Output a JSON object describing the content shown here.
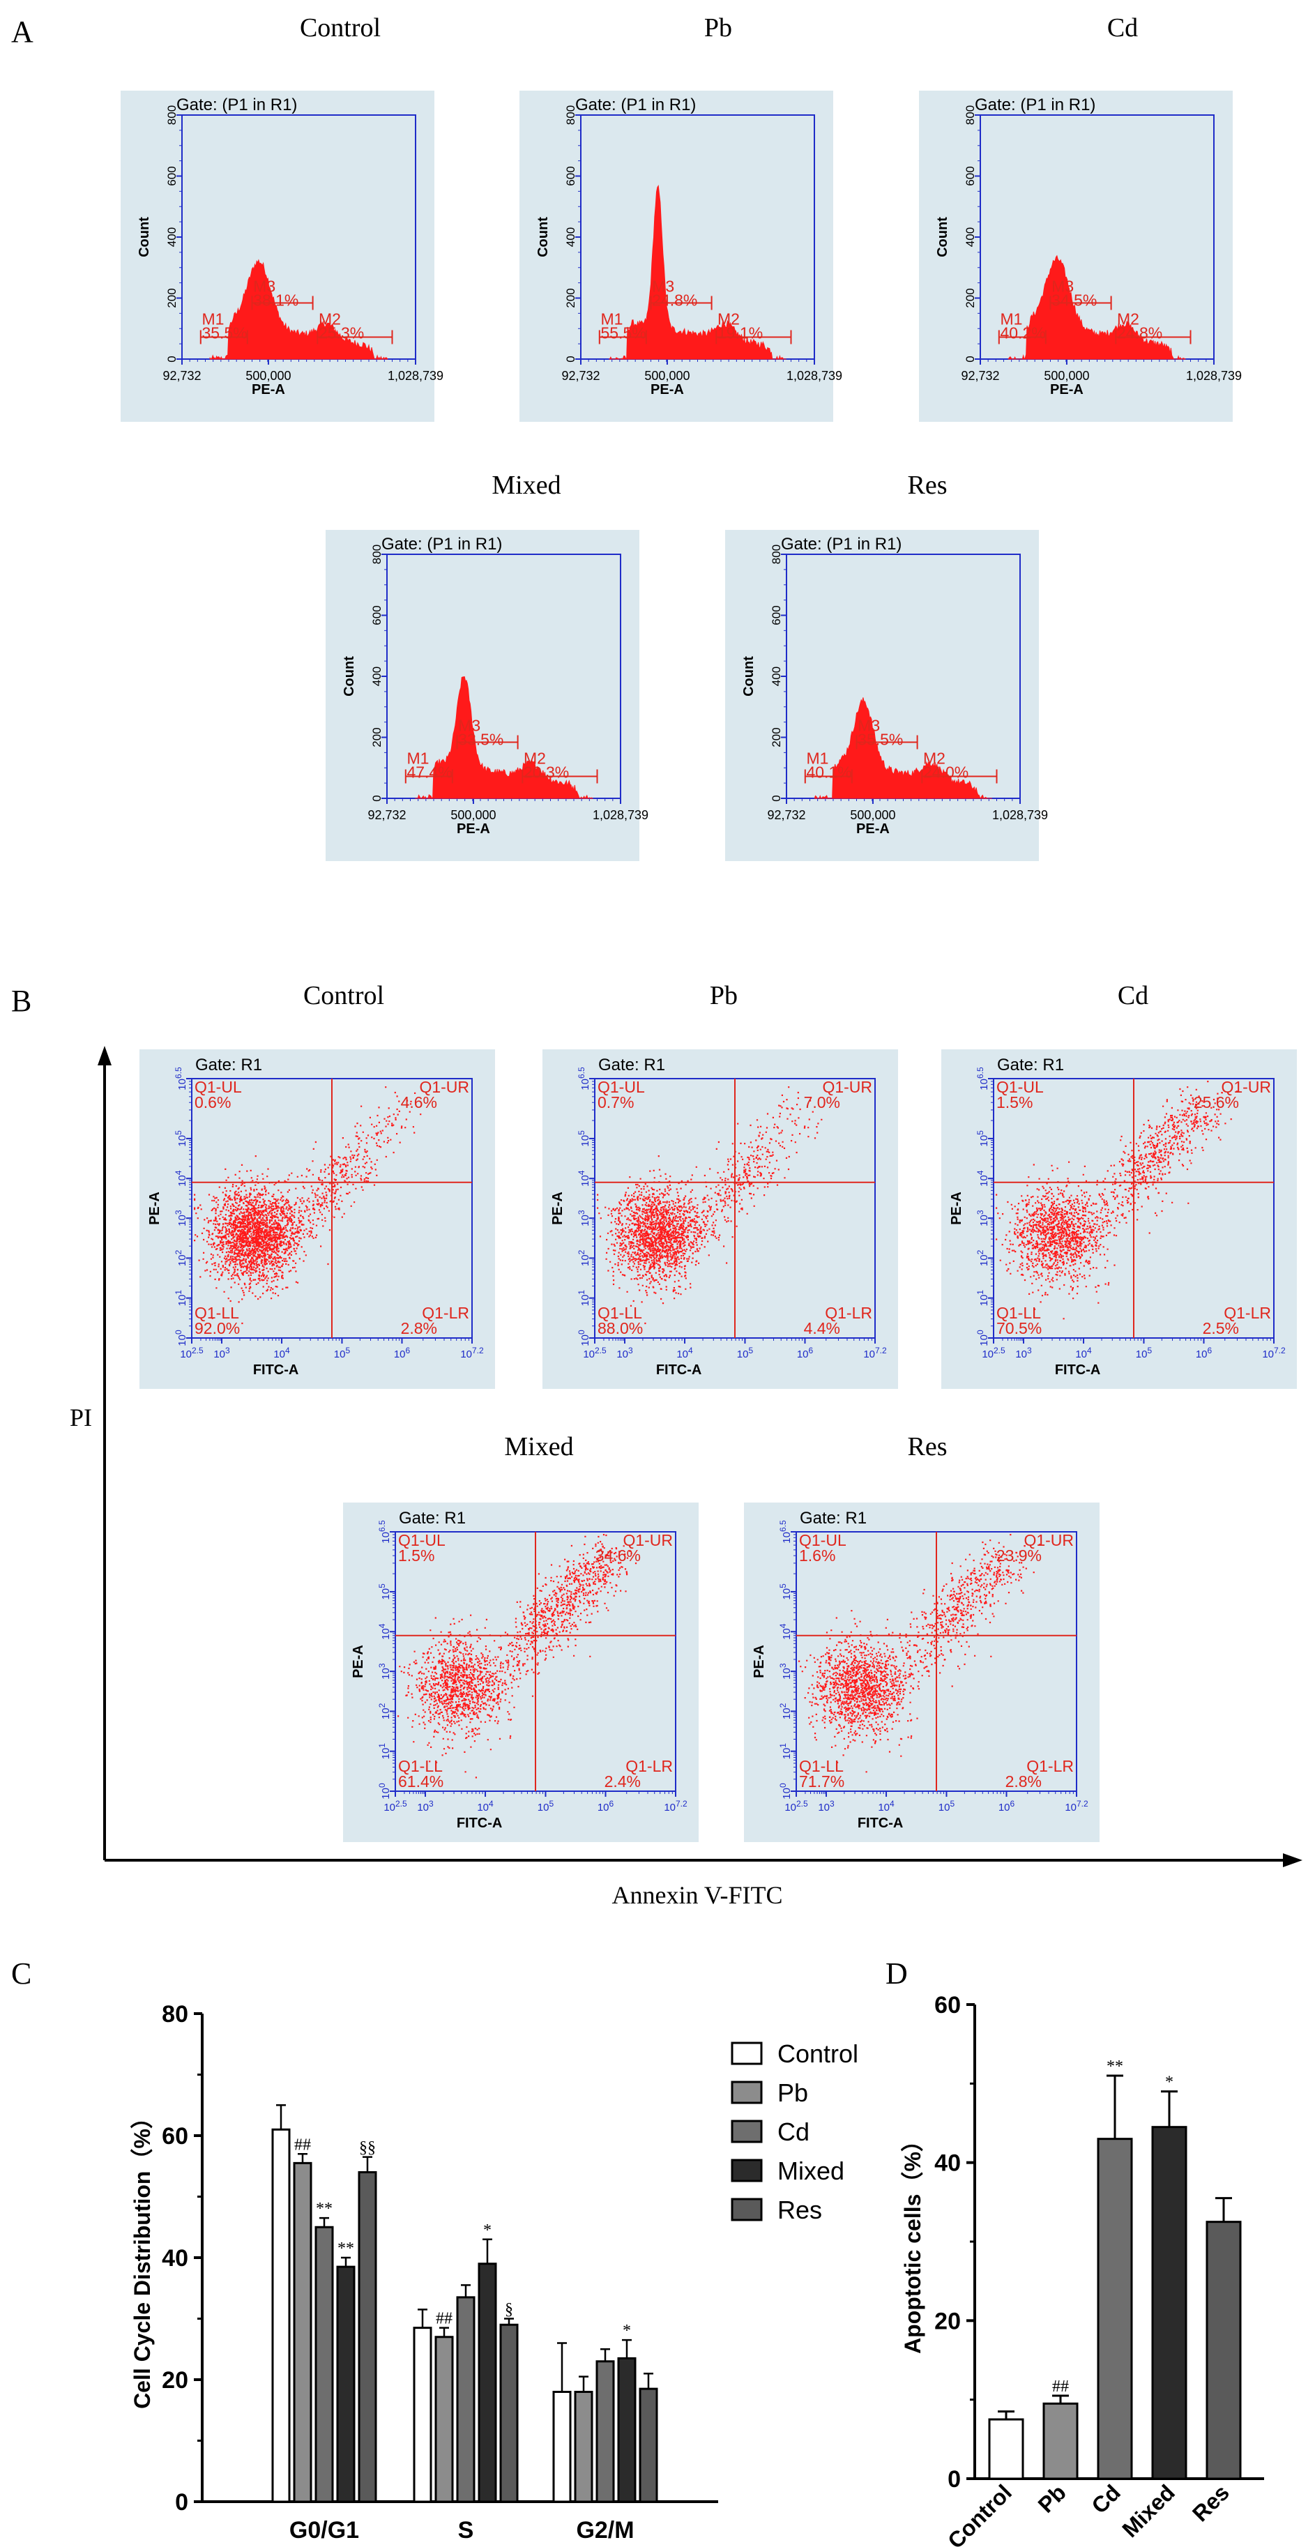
{
  "colors": {
    "panel_bg": "#dbe8ee",
    "axis_blue": "#1f2cc8",
    "data_red": "#ff1a1a",
    "label_red": "#e0261d",
    "bar_control": "#ffffff",
    "bar_pb": "#8c8c8c",
    "bar_cd": "#6e6e6e",
    "bar_mixed": "#2b2b2b",
    "bar_res": "#5a5a5a"
  },
  "panel_letters": {
    "a": "A",
    "b": "B",
    "c": "C",
    "d": "D"
  },
  "panelA": {
    "gate": "Gate: (P1 in R1)",
    "ylabel": "Count",
    "xlabel": "PE-A",
    "xticks": [
      "92,732",
      "500,000",
      "1,028,739"
    ],
    "yticks": [
      "0",
      "200",
      "400",
      "600",
      "800"
    ],
    "plots": [
      {
        "title": "Control",
        "m1": "35.5%",
        "m3": "38.1%",
        "m2": "25.3%",
        "peak": 0.27,
        "sharp": 0.05
      },
      {
        "title": "Pb",
        "m1": "55.5%",
        "m3": "24.8%",
        "m2": "19.1%",
        "peak": 0.57,
        "sharp": 0.02
      },
      {
        "title": "Cd",
        "m1": "40.2%",
        "m3": "34.5%",
        "m2": "24.8%",
        "peak": 0.28,
        "sharp": 0.05
      },
      {
        "title": "Mixed",
        "m1": "47.4%",
        "m3": "33.5%",
        "m2": "20.3%",
        "peak": 0.37,
        "sharp": 0.03
      },
      {
        "title": "Res",
        "m1": "40.1%",
        "m3": "35.5%",
        "m2": "24.0%",
        "peak": 0.27,
        "sharp": 0.04
      }
    ]
  },
  "panelB": {
    "gate": "Gate: R1",
    "xlabel": "FITC-A",
    "ylabel": "PE-A",
    "xticks": [
      "10^2.5",
      "10^3",
      "10^4",
      "10^5",
      "10^6",
      "10^7.2"
    ],
    "yticks": [
      "10^0",
      "10^1",
      "10^2",
      "10^3",
      "10^4",
      "10^5",
      "10^6.5"
    ],
    "axis_y_label": "PI",
    "axis_x_label": "Annexin V-FITC",
    "plots": [
      {
        "title": "Control",
        "ul": "0.6%",
        "ur": "4.6%",
        "ll": "92.0%",
        "lr": "2.8%"
      },
      {
        "title": "Pb",
        "ul": "0.7%",
        "ur": "7.0%",
        "ll": "88.0%",
        "lr": "4.4%"
      },
      {
        "title": "Cd",
        "ul": "1.5%",
        "ur": "25.6%",
        "ll": "70.5%",
        "lr": "2.5%"
      },
      {
        "title": "Mixed",
        "ul": "1.5%",
        "ur": "34.6%",
        "ll": "61.4%",
        "lr": "2.4%"
      },
      {
        "title": "Res",
        "ul": "1.6%",
        "ur": "23.9%",
        "ll": "71.7%",
        "lr": "2.8%"
      }
    ],
    "quadrant_names": {
      "ul": "Q1-UL",
      "ur": "Q1-UR",
      "ll": "Q1-LL",
      "lr": "Q1-LR"
    }
  },
  "chart_data": [
    {
      "type": "bar",
      "ylabel": "Cell Cycle Distribution（%）",
      "categories": [
        "G0/G1",
        "S",
        "G2/M"
      ],
      "ylim": [
        0,
        80
      ],
      "yticks": [
        0,
        20,
        40,
        60,
        80
      ],
      "legend": "right",
      "series": [
        {
          "name": "Control",
          "values": [
            61,
            28.5,
            18
          ],
          "errors": [
            4,
            3,
            8
          ],
          "marks": [
            "",
            "",
            ""
          ]
        },
        {
          "name": "Pb",
          "values": [
            55.5,
            27,
            18
          ],
          "errors": [
            1.5,
            1.5,
            2.5
          ],
          "marks": [
            "##",
            "##",
            ""
          ]
        },
        {
          "name": "Cd",
          "values": [
            45,
            33.5,
            23
          ],
          "errors": [
            1.5,
            2,
            2
          ],
          "marks": [
            "**",
            "",
            ""
          ]
        },
        {
          "name": "Mixed",
          "values": [
            38.5,
            39,
            23.5
          ],
          "errors": [
            1.5,
            4,
            3
          ],
          "marks": [
            "**",
            "*",
            "*"
          ]
        },
        {
          "name": "Res",
          "values": [
            54,
            29,
            18.5
          ],
          "errors": [
            2.5,
            1,
            2.5
          ],
          "marks": [
            "§§",
            "§",
            ""
          ]
        }
      ]
    },
    {
      "type": "bar",
      "ylabel": "Apoptotic cells（%）",
      "categories": [
        "Control",
        "Pb",
        "Cd",
        "Mixed",
        "Res"
      ],
      "values": [
        7.5,
        9.5,
        43,
        44.5,
        32.5
      ],
      "errors": [
        1,
        1,
        8,
        4.5,
        3
      ],
      "marks": [
        "",
        "##",
        "**",
        "*",
        ""
      ],
      "ylim": [
        0,
        60
      ],
      "yticks": [
        0,
        20,
        40,
        60
      ]
    }
  ]
}
